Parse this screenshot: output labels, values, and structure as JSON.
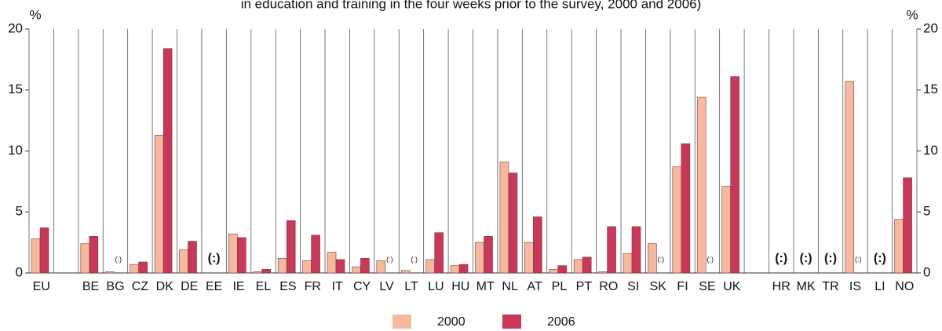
{
  "chart_data": {
    "type": "bar",
    "title": "in education and training in the four weeks prior to the survey, 2000 and 2006)",
    "y_label": "%",
    "y2_label": "%",
    "categories": [
      "EU",
      null,
      "BE",
      "BG",
      "CZ",
      "DK",
      "DE",
      "EE",
      "IE",
      "EL",
      "ES",
      "FR",
      "IT",
      "CY",
      "LV",
      "LT",
      "LU",
      "HU",
      "MT",
      "NL",
      "AT",
      "PL",
      "PT",
      "RO",
      "SI",
      "SK",
      "FI",
      "SE",
      "UK",
      null,
      "HR",
      "MK",
      "TR",
      "IS",
      "LI",
      "NO"
    ],
    "series": [
      {
        "name": "2000",
        "color": "#f5b9a0",
        "values": [
          2.8,
          null,
          2.4,
          0.1,
          0.7,
          11.3,
          1.9,
          null,
          3.2,
          0.1,
          1.2,
          1.0,
          1.7,
          0.5,
          1.0,
          0.2,
          1.1,
          0.6,
          2.5,
          9.1,
          2.5,
          0.3,
          1.1,
          0.1,
          1.6,
          2.4,
          8.7,
          14.4,
          7.1,
          null,
          null,
          null,
          null,
          15.7,
          null,
          4.4
        ]
      },
      {
        "name": "2006",
        "color": "#c8385a",
        "values": [
          3.7,
          null,
          3.0,
          null,
          0.9,
          18.4,
          2.6,
          null,
          2.9,
          0.3,
          4.3,
          3.1,
          1.1,
          1.2,
          null,
          null,
          3.3,
          0.7,
          3.0,
          8.2,
          4.6,
          0.6,
          1.3,
          3.8,
          3.8,
          null,
          10.6,
          null,
          16.1,
          null,
          null,
          null,
          null,
          null,
          null,
          7.8
        ]
      }
    ],
    "missing_labels": [
      null,
      null,
      null,
      "(:)",
      null,
      null,
      null,
      "(:)",
      null,
      null,
      null,
      null,
      null,
      null,
      "(:)",
      "(:)",
      null,
      null,
      null,
      null,
      null,
      null,
      null,
      null,
      null,
      "(:)",
      null,
      "(:)",
      null,
      null,
      "(:)",
      "(:)",
      "(:)",
      "(:)",
      "(:)",
      null
    ],
    "ylim": [
      0,
      20
    ],
    "yticks": [
      0,
      5,
      10,
      15,
      20
    ],
    "y2lim": [
      0,
      20
    ],
    "y2ticks": [
      0,
      5,
      10,
      15,
      20
    ]
  }
}
